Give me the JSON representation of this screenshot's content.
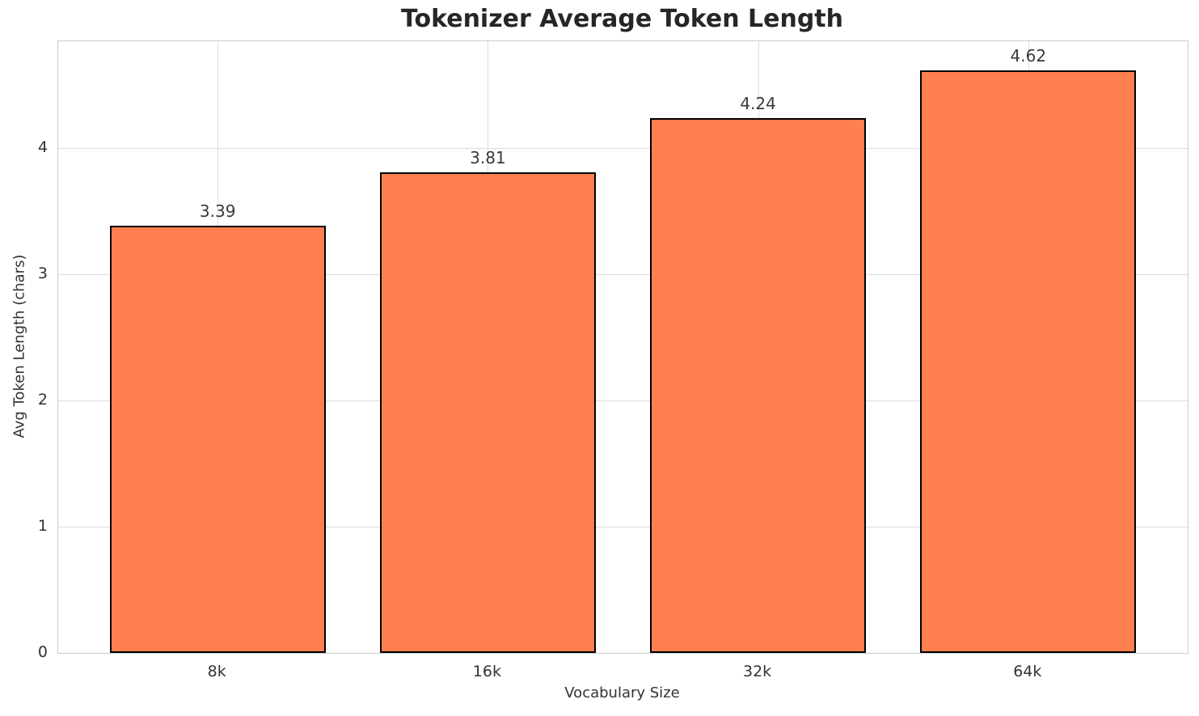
{
  "chart_data": {
    "type": "bar",
    "title": "Tokenizer Average Token Length",
    "xlabel": "Vocabulary Size",
    "ylabel": "Avg Token Length (chars)",
    "categories": [
      "8k",
      "16k",
      "32k",
      "64k"
    ],
    "values": [
      3.39,
      3.81,
      4.24,
      4.62
    ],
    "bar_labels": [
      "3.39",
      "3.81",
      "4.24",
      "4.62"
    ],
    "yticks": [
      0,
      1,
      2,
      3,
      4
    ],
    "ytick_labels": [
      "0",
      "1",
      "2",
      "3",
      "4"
    ],
    "ylim": [
      0,
      4.85
    ],
    "xlim": [
      -0.59,
      3.59
    ],
    "bar_width": 0.8,
    "grid": "both",
    "legend": "none",
    "colors": {
      "bar_fill": "#FF7F50",
      "bar_edge": "#000000",
      "grid": "#DBDBDB",
      "spine": "#CCCCCC",
      "title_text": "#262626",
      "label_text": "#333333"
    }
  }
}
